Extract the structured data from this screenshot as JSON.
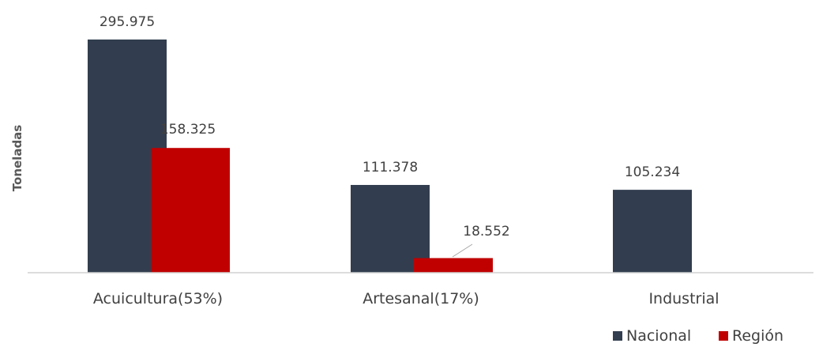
{
  "chart_data": {
    "type": "bar",
    "ylabel": "Toneladas",
    "categories": [
      "Acuicultura(53%)",
      "Artesanal(17%)",
      "Industrial"
    ],
    "series": [
      {
        "name": "Nacional",
        "color": "#323E4F",
        "values": [
          295975,
          111378,
          105234
        ],
        "labels": [
          "295.975",
          "111.378",
          "105.234"
        ]
      },
      {
        "name": "Región",
        "color": "#C00000",
        "values": [
          158325,
          18552,
          null
        ],
        "labels": [
          "158.325",
          "18.552",
          ""
        ]
      }
    ],
    "ylim": [
      0,
      300000
    ],
    "grid": false,
    "legend_position": "bottom-right"
  }
}
